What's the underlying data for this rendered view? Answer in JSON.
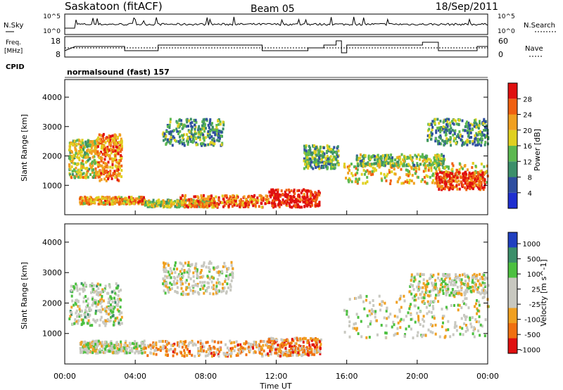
{
  "header": {
    "station": "Saskatoon (fitACF)",
    "beam": "Beam 05",
    "date": "18/Sep/2011"
  },
  "strip_panels": {
    "nsky_label": "N.Sky",
    "nsearch_label": "N.Search",
    "freq_label_line1": "Freq.",
    "freq_label_line2": "[MHz]",
    "nave_label": "Nave",
    "cpid_label": "CPID",
    "cpid_value": "normalsound (fast) 157",
    "noise_left_ticks": [
      "10^5",
      "10^0"
    ],
    "noise_right_ticks": [
      "10^5",
      "10^0"
    ],
    "freq_left_ticks": [
      "18",
      "8"
    ],
    "nave_right_ticks": [
      "60",
      "0"
    ]
  },
  "colors": {
    "power_scale": [
      "#1f2fd0",
      "#2e4ea0",
      "#3c8f6a",
      "#5cb850",
      "#e0d020",
      "#f0a020",
      "#f06010",
      "#e01010"
    ],
    "velocity_scale": [
      "#2040c0",
      "#3c8f6a",
      "#4cc040",
      "#c8c8c0",
      "#c8c8c0",
      "#f0a020",
      "#f07010",
      "#e01010"
    ],
    "ground_scatter": "#c8c8c0"
  },
  "chart_data": [
    {
      "type": "heatmap",
      "name": "power",
      "xlabel": "",
      "ylabel": "Slant Range [km]",
      "x_ticks": [
        "00:00",
        "04:00",
        "08:00",
        "12:00",
        "16:00",
        "20:00",
        "00:00"
      ],
      "y_ticks": [
        "1000",
        "2000",
        "3000",
        "4000"
      ],
      "ylim": [
        0,
        4600
      ],
      "colorbar_label": "Power [dB]",
      "colorbar_ticks": [
        "4",
        "8",
        "12",
        "16",
        "20",
        "24",
        "28"
      ],
      "regions": [
        {
          "x": [
            0.2,
            1.8
          ],
          "y": [
            1300,
            2600
          ],
          "v": 0.55
        },
        {
          "x": [
            1.8,
            3.2
          ],
          "y": [
            1200,
            2800
          ],
          "v": 0.75
        },
        {
          "x": [
            0.8,
            4.5
          ],
          "y": [
            400,
            650
          ],
          "v": 0.7
        },
        {
          "x": [
            4.5,
            8.5
          ],
          "y": [
            300,
            550
          ],
          "v": 0.5
        },
        {
          "x": [
            6.5,
            11.5
          ],
          "y": [
            300,
            700
          ],
          "v": 0.8
        },
        {
          "x": [
            5.5,
            9.0
          ],
          "y": [
            2400,
            3300
          ],
          "v": 0.35
        },
        {
          "x": [
            11.5,
            14.5
          ],
          "y": [
            300,
            900
          ],
          "v": 0.95
        },
        {
          "x": [
            13.5,
            15.5
          ],
          "y": [
            1600,
            2400
          ],
          "v": 0.4
        },
        {
          "x": [
            15.8,
            24.0
          ],
          "y": [
            1100,
            1800
          ],
          "v": 0.6
        },
        {
          "x": [
            16.5,
            21.5
          ],
          "y": [
            1700,
            2100
          ],
          "v": 0.45
        },
        {
          "x": [
            21.0,
            23.8
          ],
          "y": [
            900,
            1500
          ],
          "v": 0.9
        },
        {
          "x": [
            20.5,
            24.0
          ],
          "y": [
            2400,
            3300
          ],
          "v": 0.35
        }
      ]
    },
    {
      "type": "heatmap",
      "name": "velocity",
      "xlabel": "Time UT",
      "ylabel": "Slant Range [km]",
      "x_ticks": [
        "00:00",
        "04:00",
        "08:00",
        "12:00",
        "16:00",
        "20:00",
        "00:00"
      ],
      "y_ticks": [
        "1000",
        "2000",
        "3000",
        "4000"
      ],
      "ylim": [
        0,
        4600
      ],
      "colorbar_label": "Velocity [m s^-1]",
      "colorbar_ticks": [
        "1000",
        "500",
        "100",
        "25",
        "-25",
        "-100",
        "-500",
        "-1000"
      ],
      "regions": [
        {
          "x": [
            0.2,
            3.2
          ],
          "y": [
            1300,
            2700
          ],
          "v": 0.45
        },
        {
          "x": [
            0.8,
            4.5
          ],
          "y": [
            400,
            800
          ],
          "v": 0.5
        },
        {
          "x": [
            4.5,
            11.5
          ],
          "y": [
            300,
            800
          ],
          "v": 0.7
        },
        {
          "x": [
            5.5,
            9.5
          ],
          "y": [
            2300,
            3400
          ],
          "v": 0.5
        },
        {
          "x": [
            11.5,
            14.5
          ],
          "y": [
            300,
            900
          ],
          "v": 0.72
        },
        {
          "x": [
            15.8,
            24.0
          ],
          "y": [
            900,
            2300
          ],
          "v": 0.5
        },
        {
          "x": [
            19.5,
            24.0
          ],
          "y": [
            2300,
            3000
          ],
          "v": 0.5
        }
      ]
    }
  ]
}
